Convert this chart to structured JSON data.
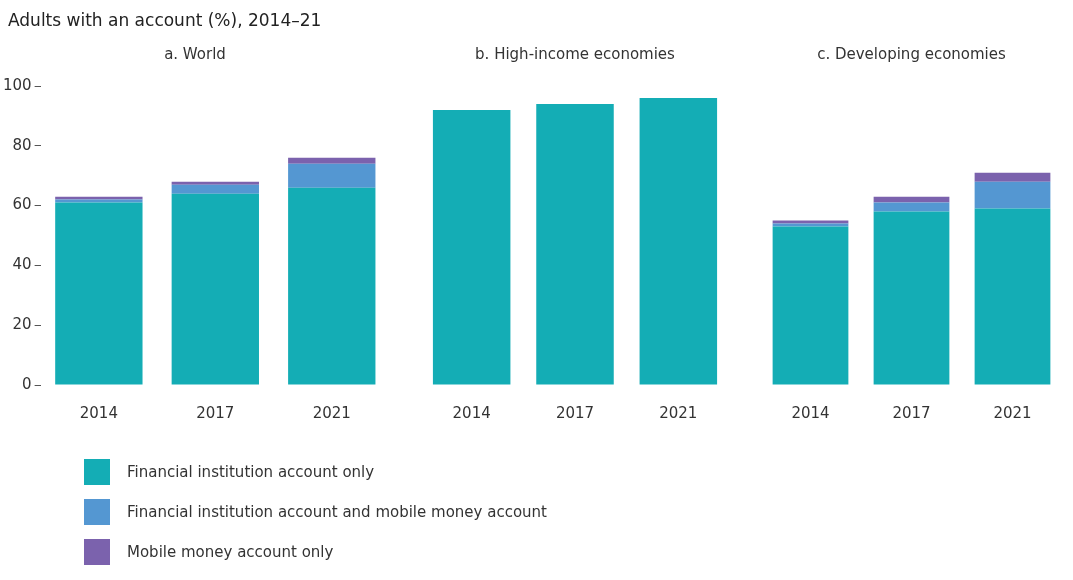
{
  "chart_data": [
    {
      "type": "bar",
      "title": "a. World",
      "ylabel": "Adults with an account (%), 2014–21",
      "categories": [
        "2014",
        "2017",
        "2021"
      ],
      "stacked": true,
      "ylim": [
        0,
        100
      ],
      "yticks": [
        0,
        20,
        40,
        60,
        80,
        100
      ],
      "grid": false,
      "legend": "bottom",
      "series": [
        {
          "name": "Financial institution account only",
          "color": "#14adb5",
          "values": [
            61,
            64,
            66
          ]
        },
        {
          "name": "Financial institution account and mobile money account",
          "color": "#5497d2",
          "values": [
            1,
            3,
            8
          ]
        },
        {
          "name": "Mobile money account only",
          "color": "#7b62ad",
          "values": [
            1,
            1,
            2
          ]
        }
      ]
    },
    {
      "type": "bar",
      "title": "b. High-income economies",
      "categories": [
        "2014",
        "2017",
        "2021"
      ],
      "stacked": true,
      "ylim": [
        0,
        100
      ],
      "yticks": [
        0,
        20,
        40,
        60,
        80,
        100
      ],
      "grid": false,
      "tick_labels": "x",
      "series": [
        {
          "color": "#14adb5",
          "values": [
            92,
            94,
            96
          ]
        }
      ]
    },
    {
      "type": "bar",
      "title": "c. Developing economies",
      "categories": [
        "2014",
        "2017",
        "2021"
      ],
      "stacked": true,
      "ylim": [
        0,
        100
      ],
      "yticks": [
        0,
        20,
        40,
        60,
        80,
        100
      ],
      "grid": false,
      "tick_labels": "x",
      "series": [
        {
          "color": "#14adb5",
          "values": [
            53,
            58,
            59
          ]
        },
        {
          "color": "#5497d2",
          "values": [
            1,
            3,
            9
          ]
        },
        {
          "color": "#7b62ad",
          "values": [
            1,
            2,
            3
          ]
        }
      ]
    }
  ]
}
